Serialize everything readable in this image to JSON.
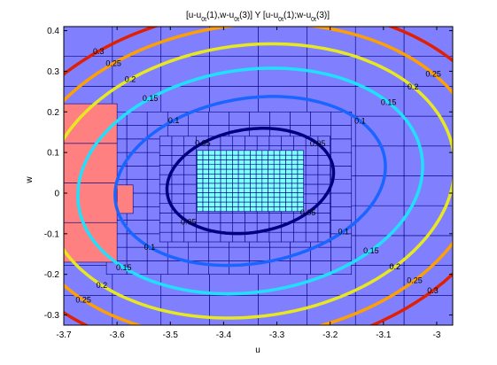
{
  "chart_data": {
    "type": "contour",
    "title": {
      "parts": [
        {
          "t": "[u-u",
          "sub": false
        },
        {
          "t": "0t",
          "sub": true
        },
        {
          "t": "(1),w-u",
          "sub": false
        },
        {
          "t": "0t",
          "sub": true
        },
        {
          "t": "(3)] Y [u-u",
          "sub": false
        },
        {
          "t": "0t",
          "sub": true
        },
        {
          "t": "(1);w-u",
          "sub": false
        },
        {
          "t": "0t",
          "sub": true
        },
        {
          "t": "(3)]",
          "sub": false
        }
      ]
    },
    "xlabel": "u",
    "ylabel": "w",
    "xlim": [
      -3.7,
      -2.97
    ],
    "ylim": [
      -0.325,
      0.41
    ],
    "xticks": [
      -3.7,
      -3.6,
      -3.5,
      -3.4,
      -3.3,
      -3.2,
      -3.1,
      -3
    ],
    "xtick_labels": [
      "-3.7",
      "-3.6",
      "-3.5",
      "-3.4",
      "-3.3",
      "-3.2",
      "-3.1",
      "-3"
    ],
    "yticks": [
      -0.3,
      -0.2,
      -0.1,
      0,
      0.1,
      0.2,
      0.3,
      0.4
    ],
    "ytick_labels": [
      "-0.3",
      "-0.2",
      "-0.1",
      "0",
      "0.1",
      "0.2",
      "0.3",
      "0.4"
    ],
    "background_color": "#8080ff",
    "cell_edge_color": "#000080",
    "regions": [
      {
        "kind": "grid",
        "x": [
          -3.7,
          -2.97
        ],
        "y": [
          -0.325,
          0.41
        ],
        "nx": 8,
        "ny": 10,
        "fill": "#8080ff"
      },
      {
        "kind": "grid",
        "x": [
          -3.62,
          -3.16
        ],
        "y": [
          -0.2,
          0.2
        ],
        "nx": 12,
        "ny": 12,
        "fill": "#8080ff"
      },
      {
        "kind": "grid",
        "x": [
          -3.52,
          -3.2
        ],
        "y": [
          -0.12,
          0.14
        ],
        "nx": 14,
        "ny": 11,
        "fill": "#8080ff"
      },
      {
        "kind": "grid",
        "x": [
          -3.45,
          -3.25
        ],
        "y": [
          -0.045,
          0.105
        ],
        "nx": 18,
        "ny": 13,
        "fill": "#80ffff"
      },
      {
        "kind": "grid",
        "x": [
          -3.7,
          -3.6
        ],
        "y": [
          -0.17,
          0.22
        ],
        "nx": 1,
        "ny": 4,
        "fill": "#ff8080"
      },
      {
        "kind": "grid",
        "x": [
          -3.6,
          -3.57
        ],
        "y": [
          -0.05,
          0.02
        ],
        "nx": 1,
        "ny": 1,
        "fill": "#ff8080"
      }
    ],
    "center": [
      -3.35,
      0.03
    ],
    "levels": [
      {
        "value": 0.05,
        "color": "#000080",
        "label": "0.05",
        "rx": 0.16,
        "ry": 0.125
      },
      {
        "value": 0.1,
        "color": "#1a64ff",
        "label": "0.1",
        "rx": 0.26,
        "ry": 0.2
      },
      {
        "value": 0.15,
        "color": "#20e0ff",
        "label": "0.15",
        "rx": 0.33,
        "ry": 0.27
      },
      {
        "value": 0.2,
        "color": "#e8e820",
        "label": "0.2",
        "rx": 0.39,
        "ry": 0.33
      },
      {
        "value": 0.25,
        "color": "#ffa000",
        "label": "0.25",
        "rx": 0.44,
        "ry": 0.38
      },
      {
        "value": 0.3,
        "color": "#e02000",
        "label": "0.3",
        "rx": 0.49,
        "ry": 0.42
      }
    ],
    "contour_tilt_deg": 20,
    "grid": false
  }
}
